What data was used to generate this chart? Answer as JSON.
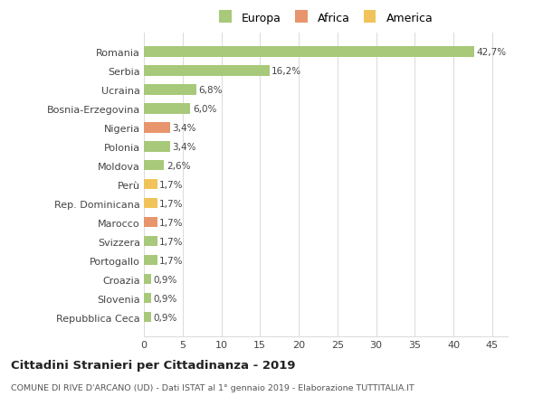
{
  "categories": [
    "Repubblica Ceca",
    "Slovenia",
    "Croazia",
    "Portogallo",
    "Svizzera",
    "Marocco",
    "Rep. Dominicana",
    "Perù",
    "Moldova",
    "Polonia",
    "Nigeria",
    "Bosnia-Erzegovina",
    "Ucraina",
    "Serbia",
    "Romania"
  ],
  "values": [
    0.9,
    0.9,
    0.9,
    1.7,
    1.7,
    1.7,
    1.7,
    1.7,
    2.6,
    3.4,
    3.4,
    6.0,
    6.8,
    16.2,
    42.7
  ],
  "labels": [
    "0,9%",
    "0,9%",
    "0,9%",
    "1,7%",
    "1,7%",
    "1,7%",
    "1,7%",
    "1,7%",
    "2,6%",
    "3,4%",
    "3,4%",
    "6,0%",
    "6,8%",
    "16,2%",
    "42,7%"
  ],
  "colors": [
    "#a8c87a",
    "#a8c87a",
    "#a8c87a",
    "#a8c87a",
    "#a8c87a",
    "#e8956d",
    "#f0c45a",
    "#f0c45a",
    "#a8c87a",
    "#a8c87a",
    "#e8956d",
    "#a8c87a",
    "#a8c87a",
    "#a8c87a",
    "#a8c87a"
  ],
  "legend_labels": [
    "Europa",
    "Africa",
    "America"
  ],
  "legend_colors": [
    "#a8c87a",
    "#e8956d",
    "#f0c45a"
  ],
  "title": "Cittadini Stranieri per Cittadinanza - 2019",
  "subtitle": "COMUNE DI RIVE D'ARCANO (UD) - Dati ISTAT al 1° gennaio 2019 - Elaborazione TUTTITALIA.IT",
  "xlim": [
    0,
    47
  ],
  "xticks": [
    0,
    5,
    10,
    15,
    20,
    25,
    30,
    35,
    40,
    45
  ],
  "bg_color": "#ffffff",
  "grid_color": "#dddddd",
  "bar_height": 0.55
}
